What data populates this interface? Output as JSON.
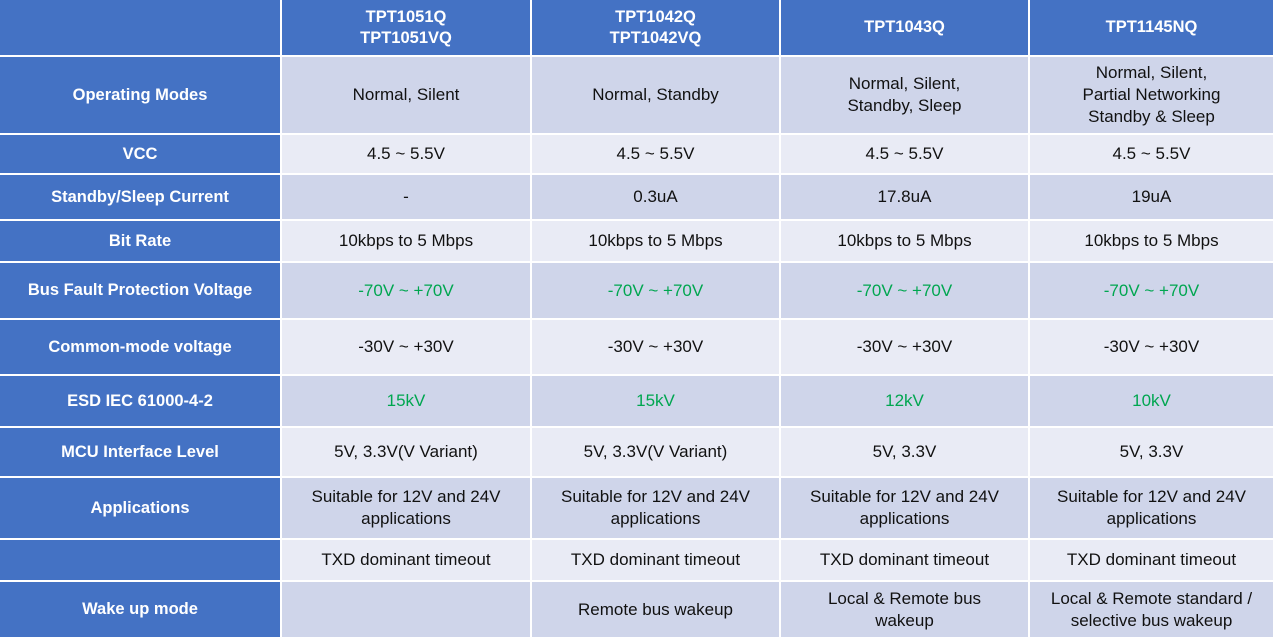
{
  "colors": {
    "header": "#4472C4",
    "row_dark": "#CFD5EA",
    "row_light": "#E9EBF5",
    "highlight_text": "#00A650"
  },
  "columns": [
    "",
    "TPT1051Q\nTPT1051VQ",
    "TPT1042Q\nTPT1042VQ",
    "TPT1043Q",
    "TPT1145NQ"
  ],
  "rows": [
    {
      "label": "Operating Modes",
      "cells": [
        "Normal, Silent",
        "Normal, Standby",
        "Normal, Silent,\nStandby, Sleep",
        "Normal, Silent,\nPartial Networking\nStandby & Sleep"
      ],
      "green": false
    },
    {
      "label": "VCC",
      "cells": [
        "4.5 ~ 5.5V",
        "4.5 ~ 5.5V",
        "4.5 ~ 5.5V",
        "4.5 ~ 5.5V"
      ],
      "green": false
    },
    {
      "label": "Standby/Sleep Current",
      "cells": [
        "-",
        "0.3uA",
        "17.8uA",
        "19uA"
      ],
      "green": false
    },
    {
      "label": "Bit Rate",
      "cells": [
        "10kbps to 5 Mbps",
        "10kbps to 5 Mbps",
        "10kbps to 5 Mbps",
        "10kbps to 5 Mbps"
      ],
      "green": false
    },
    {
      "label": "Bus Fault Protection Voltage",
      "cells": [
        "-70V ~ +70V",
        "-70V ~ +70V",
        "-70V ~ +70V",
        "-70V ~ +70V"
      ],
      "green": true
    },
    {
      "label": "Common-mode voltage",
      "cells": [
        "-30V ~ +30V",
        "-30V ~ +30V",
        "-30V ~ +30V",
        "-30V ~ +30V"
      ],
      "green": false
    },
    {
      "label": "ESD IEC 61000-4-2",
      "cells": [
        "15kV",
        "15kV",
        "12kV",
        "10kV"
      ],
      "green": true
    },
    {
      "label": "MCU Interface Level",
      "cells": [
        "5V, 3.3V(V Variant)",
        "5V, 3.3V(V Variant)",
        "5V, 3.3V",
        "5V, 3.3V"
      ],
      "green": false
    },
    {
      "label": "Applications",
      "cells": [
        "Suitable for 12V and 24V\napplications",
        "Suitable for 12V and 24V\napplications",
        "Suitable for 12V and 24V\napplications",
        "Suitable for 12V and 24V\napplications"
      ],
      "green": false
    },
    {
      "label": "",
      "cells": [
        "TXD dominant timeout",
        "TXD dominant timeout",
        "TXD dominant timeout",
        "TXD dominant timeout"
      ],
      "green": false
    },
    {
      "label": "Wake up mode",
      "cells": [
        "",
        "Remote bus wakeup",
        "Local & Remote bus\nwakeup",
        "Local & Remote standard /\nselective bus wakeup"
      ],
      "green": false
    }
  ]
}
